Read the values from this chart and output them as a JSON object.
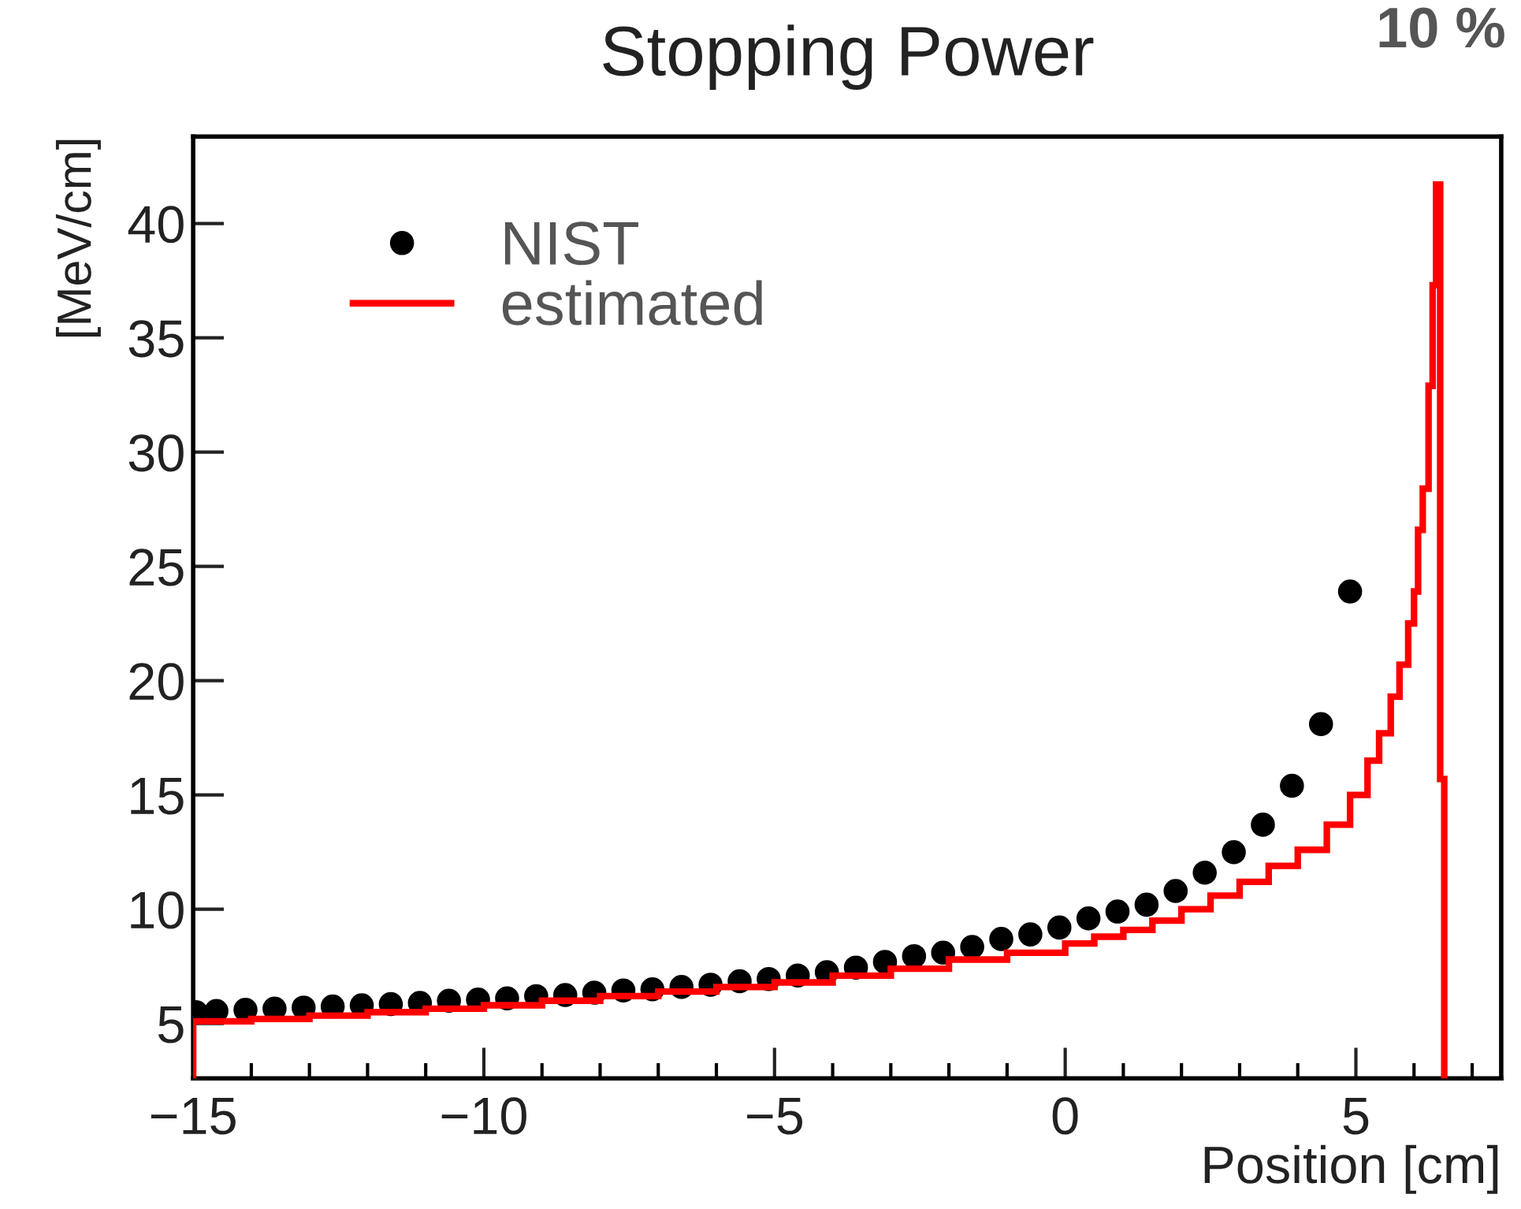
{
  "chart_data": {
    "type": "scatter",
    "title": "Stopping Power",
    "xlabel": "Position [cm]",
    "ylabel": "[MeV/cm]",
    "annotations": [
      "10 %"
    ],
    "xlim": [
      -15,
      7.5
    ],
    "ylim": [
      2.6,
      43.8
    ],
    "xticks": [
      {
        "value": -15,
        "label": "−15"
      },
      {
        "value": -10,
        "label": "−10"
      },
      {
        "value": -5,
        "label": "−5"
      },
      0,
      5
    ],
    "yticks": [
      5,
      10,
      15,
      20,
      25,
      30,
      35,
      40
    ],
    "grid": false,
    "legend": "top left",
    "marker": "circle",
    "series": [
      {
        "name": "NIST",
        "color": "#000000",
        "x": [
          -14.95,
          -14.6,
          -14.1,
          -13.6,
          -13.1,
          -12.6,
          -12.1,
          -11.6,
          -11.1,
          -10.6,
          -10.1,
          -9.6,
          -9.1,
          -8.6,
          -8.1,
          -7.6,
          -7.1,
          -6.6,
          -6.1,
          -5.6,
          -5.1,
          -4.6,
          -4.1,
          -3.6,
          -3.1,
          -2.6,
          -2.1,
          -1.6,
          -1.1,
          -0.6,
          -0.1,
          0.4,
          0.9,
          1.4,
          1.9,
          2.4,
          2.9,
          3.4,
          3.9,
          4.4,
          4.9
        ],
        "values": [
          5.5,
          5.55,
          5.6,
          5.65,
          5.7,
          5.75,
          5.8,
          5.85,
          5.9,
          6.0,
          6.05,
          6.1,
          6.2,
          6.25,
          6.35,
          6.45,
          6.5,
          6.6,
          6.7,
          6.85,
          6.95,
          7.1,
          7.25,
          7.45,
          7.7,
          7.95,
          8.1,
          8.35,
          8.7,
          8.9,
          9.2,
          9.6,
          9.9,
          10.2,
          10.8,
          11.6,
          12.5,
          13.7,
          15.4,
          18.1,
          23.9
        ]
      },
      {
        "name": "estimated",
        "type": "histogram",
        "color": "#ff0000",
        "bins": [
          -15,
          -14,
          -13,
          -12,
          -11,
          -10,
          -9,
          -8,
          -7,
          -6,
          -5,
          -4,
          -3,
          -2,
          -1,
          0,
          0.5,
          1,
          1.5,
          2,
          2.5,
          3,
          3.5,
          4,
          4.5,
          4.9,
          5.2,
          5.4,
          5.6,
          5.75,
          5.9,
          6.0,
          6.07,
          6.15,
          6.25,
          6.32,
          6.38,
          6.45,
          6.52
        ],
        "values": [
          5.1,
          5.2,
          5.35,
          5.5,
          5.65,
          5.8,
          6.0,
          6.2,
          6.4,
          6.6,
          6.8,
          7.1,
          7.4,
          7.8,
          8.1,
          8.5,
          8.8,
          9.1,
          9.5,
          10.0,
          10.6,
          11.2,
          11.9,
          12.6,
          13.7,
          15.0,
          16.5,
          17.7,
          19.3,
          20.7,
          22.5,
          23.9,
          26.6,
          28.4,
          32.9,
          37.3,
          41.7,
          15.7
        ]
      }
    ]
  }
}
